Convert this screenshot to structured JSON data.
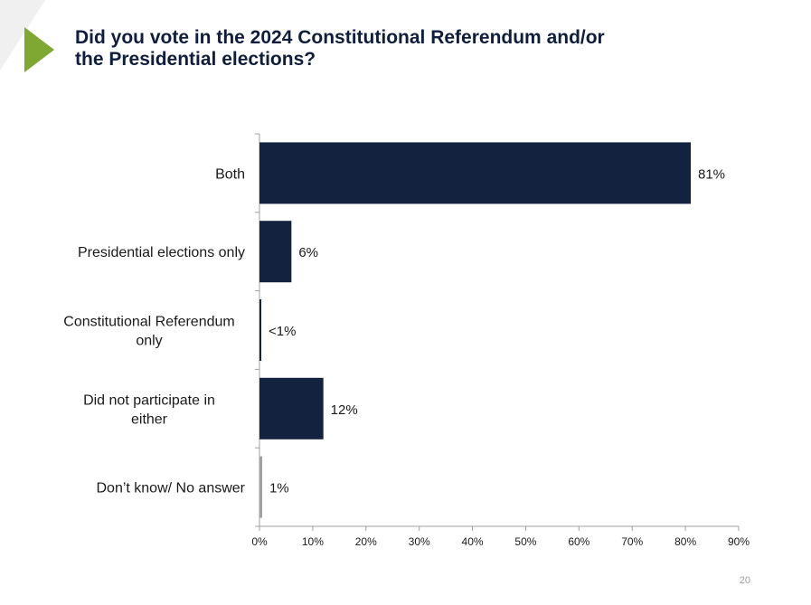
{
  "title_line1": "Did you vote in the 2024 Constitutional Referendum and/or",
  "title_line2": "the Presidential elections?",
  "page_number": "20",
  "colors": {
    "accent": "#7fa832",
    "bar": "#13223f",
    "bar_minor": "#a0a0a0",
    "title": "#0f1e3c"
  },
  "chart_data": {
    "type": "bar",
    "orientation": "horizontal",
    "categories": [
      [
        "Both"
      ],
      [
        "Presidential elections only"
      ],
      [
        "Constitutional Referendum",
        "only"
      ],
      [
        "Did not participate  in",
        "either"
      ],
      [
        "Don’t know/ No answer"
      ]
    ],
    "values": [
      81,
      6,
      0.3,
      12,
      0.5
    ],
    "value_labels": [
      "81%",
      "6%",
      "<1%",
      "12%",
      "1%"
    ],
    "xlim": [
      0,
      90
    ],
    "xticks": [
      "0%",
      "10%",
      "20%",
      "30%",
      "40%",
      "50%",
      "60%",
      "70%",
      "80%",
      "90%"
    ],
    "grid": false,
    "legend": "none"
  }
}
